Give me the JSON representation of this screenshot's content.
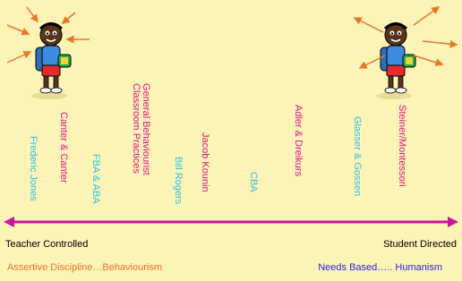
{
  "labels": [
    {
      "text": "Frederic Jones",
      "color": "#2ec4e6"
    },
    {
      "text": "Canter & Canter",
      "color": "#e0158c"
    },
    {
      "text": "FBA & ABA",
      "color": "#2ec4e6"
    },
    {
      "lines": [
        "General Behaviourist",
        "Classroom Practices"
      ],
      "color": "#e0158c"
    },
    {
      "text": "Bill Rogers",
      "color": "#2ec4e6"
    },
    {
      "text": "Jacob Kounin",
      "color": "#e0158c"
    },
    {
      "text": "CBA",
      "color": "#2ec4e6"
    },
    {
      "text": "Adler & Dreikurs",
      "color": "#e0158c"
    },
    {
      "text": "Glasser & Gossen",
      "color": "#2ec4e6"
    },
    {
      "text": "Steiner/Montessori",
      "color": "#e0158c"
    }
  ],
  "axis": {
    "left": "Teacher Controlled",
    "right": "Student Directed"
  },
  "footer": {
    "left": "Assertive Discipline…Behaviourism",
    "right": "Needs Based….. Humanism"
  }
}
